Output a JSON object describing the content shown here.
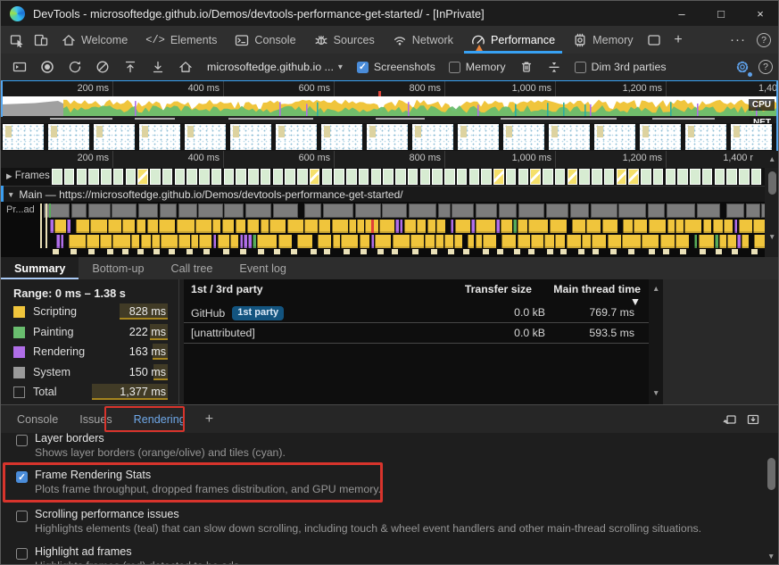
{
  "window": {
    "title": "DevTools - microsoftedge.github.io/Demos/devtools-performance-get-started/ - [InPrivate]",
    "controls": {
      "minimize": "–",
      "maximize": "□",
      "close": "×"
    }
  },
  "icons": {
    "up": "▲",
    "down": "▼",
    "caret": "▾",
    "closed": "▶",
    "open": "▼",
    "sort": "▼",
    "more": "···",
    "help": "?",
    "plus": "+",
    "check": "✓"
  },
  "main_tabs": {
    "items": [
      {
        "label": "Welcome"
      },
      {
        "label": "Elements"
      },
      {
        "label": "Console"
      },
      {
        "label": "Sources"
      },
      {
        "label": "Network"
      },
      {
        "label": "Performance"
      },
      {
        "label": "Memory"
      }
    ],
    "active": "Performance"
  },
  "toolbar": {
    "url_selector": "microsoftedge.github.io ...",
    "screenshots_label": "Screenshots",
    "screenshots_checked": true,
    "memory_label": "Memory",
    "memory_checked": false,
    "dim_label": "Dim 3rd parties",
    "dim_checked": false
  },
  "timeline": {
    "top_ticks": [
      "200 ms",
      "400 ms",
      "600 ms",
      "800 ms",
      "1,000 ms",
      "1,200 ms",
      "1,400"
    ],
    "frames_ticks": [
      "200 ms",
      "400 ms",
      "600 ms",
      "800 ms",
      "1,000 ms",
      "1,200 ms",
      "1,400 r"
    ],
    "cpu_label": "CPU",
    "net_label": "NET",
    "thumbnail_count": 17
  },
  "tracks": {
    "frames_label": "Frames",
    "main_label": "Main — https://microsoftedge.github.io/Demos/devtools-performance-get-started/",
    "thread_label": "Pr...ad",
    "dropped_frame_indices": [
      7,
      21,
      36,
      39,
      42,
      46,
      47
    ]
  },
  "summary": {
    "tabs": [
      "Summary",
      "Bottom-up",
      "Call tree",
      "Event log"
    ],
    "active_tab": "Summary",
    "range": "Range: 0 ms – 1.38 s",
    "total_ms": 1377,
    "legend": [
      {
        "label": "Scripting",
        "display": "828 ms",
        "ms": 828,
        "color": "#f0c53c",
        "outline": false
      },
      {
        "label": "Painting",
        "display": "222 ms",
        "ms": 222,
        "color": "#69bd6e",
        "outline": false
      },
      {
        "label": "Rendering",
        "display": "163 ms",
        "ms": 163,
        "color": "#b06ee8",
        "outline": false
      },
      {
        "label": "System",
        "display": "150 ms",
        "ms": 150,
        "color": "#9a9a9a",
        "outline": false
      },
      {
        "label": "Total",
        "display": "1,377 ms",
        "ms": 1377,
        "color": "transparent",
        "outline": true
      }
    ]
  },
  "party_table": {
    "columns": [
      "1st / 3rd party",
      "Transfer size",
      "Main thread time"
    ],
    "rows": [
      {
        "name": "GitHub",
        "badge": "1st party",
        "transfer": "0.0 kB",
        "time": "769.7 ms"
      },
      {
        "name": "[unattributed]",
        "badge": "",
        "transfer": "0.0 kB",
        "time": "593.5 ms"
      }
    ]
  },
  "drawer": {
    "tabs": [
      "Console",
      "Issues",
      "Rendering"
    ],
    "active": "Rendering"
  },
  "rendering_panel": {
    "items": [
      {
        "title": "Layer borders",
        "desc": "Shows layer borders (orange/olive) and tiles (cyan).",
        "checked": false,
        "highlighted": false
      },
      {
        "title": "Frame Rendering Stats",
        "desc": "Plots frame throughput, dropped frames distribution, and GPU memory.",
        "checked": true,
        "highlighted": true
      },
      {
        "title": "Scrolling performance issues",
        "desc": "Highlights elements (teal) that can slow down scrolling, including touch & wheel event handlers and other main-thread scrolling situations.",
        "checked": false,
        "highlighted": false
      },
      {
        "title": "Highlight ad frames",
        "desc": "Highlights frames (red) detected to be ads.",
        "checked": false,
        "highlighted": false
      }
    ]
  }
}
